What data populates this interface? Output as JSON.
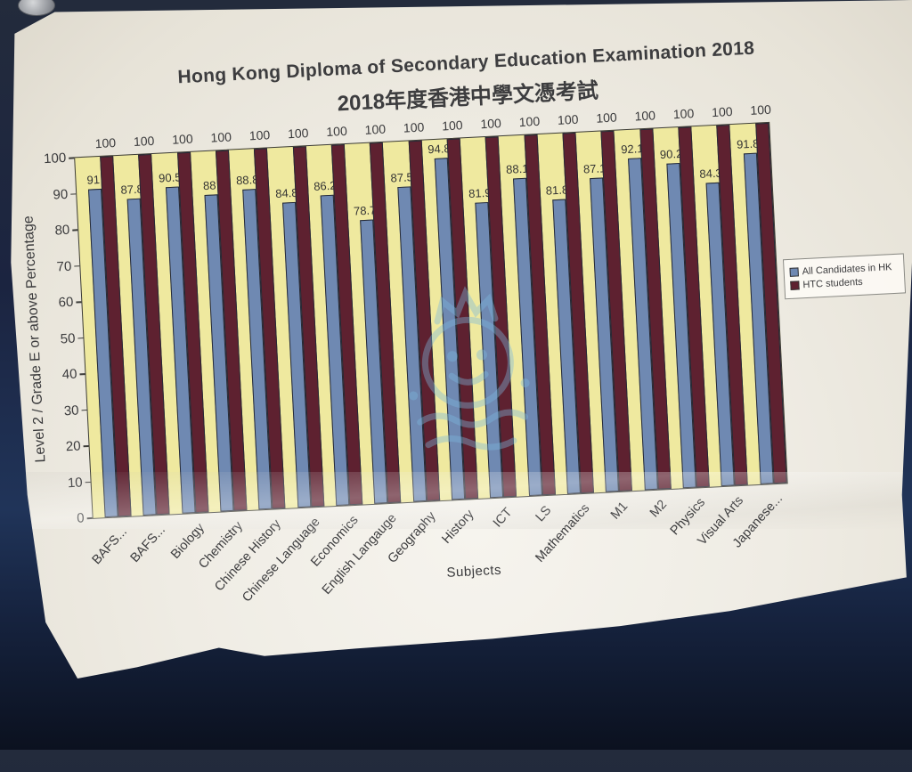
{
  "photo": {
    "background_color": "#1b2440",
    "paper_color": "#efece4",
    "watermark_color": "#7db8dd"
  },
  "title": {
    "line1": "Hong Kong Diploma of Secondary Education Examination 2018",
    "line2": "2018年度香港中學文憑考試"
  },
  "chart_data": {
    "type": "bar",
    "title": "Hong Kong Diploma of Secondary Education Examination 2018 2018年度香港中學文憑考試",
    "xlabel": "Subjects",
    "ylabel": "Level 2 / Grade E or above Percentage",
    "ylim": [
      0,
      100
    ],
    "yticks": [
      0,
      10,
      20,
      30,
      40,
      50,
      60,
      70,
      80,
      90,
      100
    ],
    "grid": false,
    "legend_position": "right",
    "plot_background": "#efe99f",
    "categories": [
      "BAFS...",
      "BAFS...",
      "Biology",
      "Chemistry",
      "Chinese History",
      "Chinese Language",
      "Economics",
      "English Langauge",
      "Geography",
      "History",
      "ICT",
      "LS",
      "Mathematics",
      "M1",
      "M2",
      "Physics",
      "Visual Arts",
      "Japanese..."
    ],
    "series": [
      {
        "name": "All Candidates in HK",
        "color": "#6f89b2",
        "values": [
          91,
          87.8,
          90.5,
          88,
          88.8,
          84.8,
          86.2,
          78.7,
          87.5,
          94.8,
          81.9,
          88.1,
          81.8,
          87.1,
          92.1,
          90.2,
          84.3,
          91.8
        ]
      },
      {
        "name": "HTC students",
        "color": "#5e2130",
        "values": [
          100,
          100,
          100,
          100,
          100,
          100,
          100,
          100,
          100,
          100,
          100,
          100,
          100,
          100,
          100,
          100,
          100,
          100
        ]
      }
    ]
  },
  "legend": {
    "items": [
      {
        "label": "All Candidates in HK",
        "color": "#6f89b2"
      },
      {
        "label": "HTC students",
        "color": "#5e2130"
      }
    ]
  }
}
